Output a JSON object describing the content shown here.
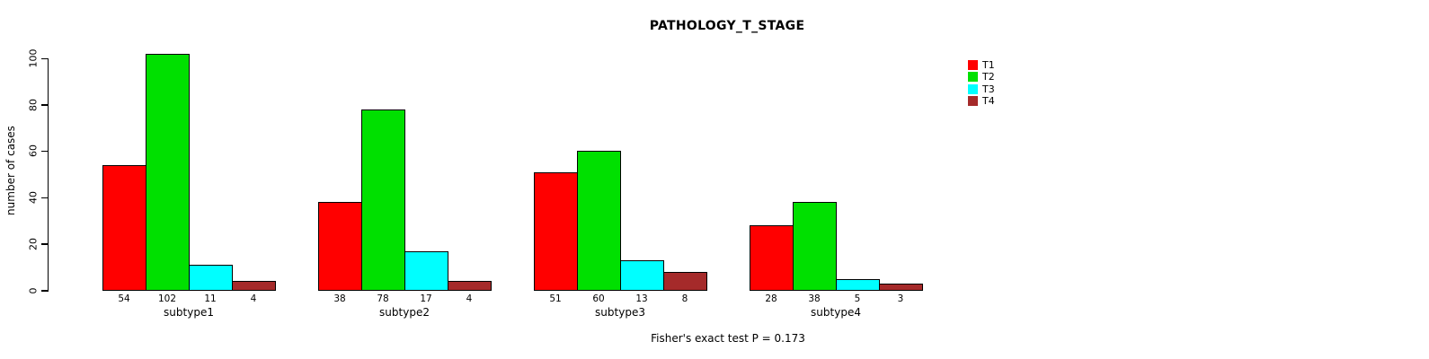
{
  "title": "PATHOLOGY_T_STAGE",
  "footer": "Fisher's exact test P = 0.173",
  "colors": {
    "background": "#FFFFFF",
    "axis": "#000000",
    "text": "#000000",
    "T1": "#FF0000",
    "T2": "#00E000",
    "T3": "#00FFFF",
    "T4": "#A52A2A"
  },
  "legend": {
    "position": "right",
    "items": [
      {
        "label": "T1",
        "color": "#FF0000"
      },
      {
        "label": "T2",
        "color": "#00E000"
      },
      {
        "label": "T3",
        "color": "#00FFFF"
      },
      {
        "label": "T4",
        "color": "#A52A2A"
      }
    ]
  },
  "chart_data": {
    "type": "bar",
    "title": "PATHOLOGY_T_STAGE",
    "xlabel": "",
    "ylabel": "number of cases",
    "categories": [
      "subtype1",
      "subtype2",
      "subtype3",
      "subtype4"
    ],
    "series": [
      {
        "name": "T1",
        "color": "#FF0000",
        "values": [
          54,
          38,
          51,
          28
        ]
      },
      {
        "name": "T2",
        "color": "#00E000",
        "values": [
          102,
          78,
          60,
          38
        ]
      },
      {
        "name": "T3",
        "color": "#00FFFF",
        "values": [
          11,
          17,
          13,
          5
        ]
      },
      {
        "name": "T4",
        "color": "#A52A2A",
        "values": [
          4,
          4,
          8,
          3
        ]
      }
    ],
    "bar_value_labels": [
      [
        54,
        102,
        11,
        4
      ],
      [
        38,
        78,
        17,
        4
      ],
      [
        51,
        60,
        13,
        8
      ],
      [
        28,
        38,
        5,
        3
      ]
    ],
    "yticks": [
      0,
      20,
      40,
      60,
      80,
      100
    ],
    "ylim": [
      0,
      102
    ],
    "grid": false,
    "legend_position": "right",
    "annotation": "Fisher's exact test P = 0.173"
  }
}
